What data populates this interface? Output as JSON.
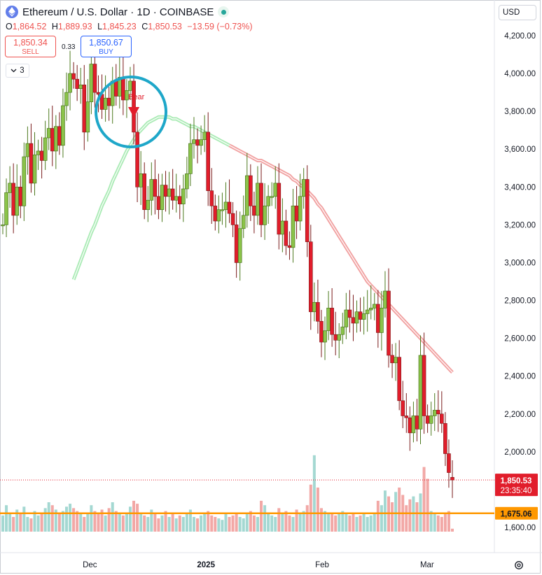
{
  "header": {
    "title": "Ethereum / U.S. Dollar · 1D · COINBASE",
    "ohlc": [
      {
        "k": "O",
        "v": "1,864.52"
      },
      {
        "k": "H",
        "v": "1,889.93"
      },
      {
        "k": "L",
        "v": "1,845.23"
      },
      {
        "k": "C",
        "v": "1,850.53"
      }
    ],
    "change": "−13.59 (−0.73%)"
  },
  "trade": {
    "sell_price": "1,850.34",
    "sell_label": "SELL",
    "buy_price": "1,850.67",
    "buy_label": "BUY",
    "spread": "0.33"
  },
  "indicator_count": "3",
  "currency": "USD",
  "colors": {
    "up": "#8bc34a",
    "up_volume": "#a4d8d2",
    "down": "#e11d2b",
    "down_volume": "#f2a8a6",
    "ma_down": "#ef8f8f",
    "ma_up": "#9be8a8",
    "marker_ring": "#1ea7c9",
    "price_label": "#e11d2b",
    "level_line": "#ff9800",
    "level_label": "#ff9800"
  },
  "icons": {
    "symbol": "ethereum-icon",
    "market_status": "market-open-dot-icon",
    "settings": "settings-gear-icon",
    "toggle": "chevron-down-icon"
  },
  "chart_data": {
    "type": "candlestick",
    "title": "Ethereum / U.S. Dollar · 1D · COINBASE",
    "xlabel": "",
    "ylabel": "",
    "ylim": [
      1580,
      4300
    ],
    "y_ticks": [
      "1,600.00",
      "2,000.00",
      "2,200.00",
      "2,400.00",
      "2,600.00",
      "2,800.00",
      "3,000.00",
      "3,200.00",
      "3,400.00",
      "3,600.00",
      "3,800.00",
      "4,000.00",
      "4,200.00"
    ],
    "y_tick_values": [
      1600,
      2000,
      2200,
      2400,
      2600,
      2800,
      3000,
      3200,
      3400,
      3600,
      3800,
      4000,
      4200
    ],
    "x_ticks": [
      {
        "label": "Dec",
        "date": "2024-12-01"
      },
      {
        "label": "2025",
        "date": "2025-01-01"
      },
      {
        "label": "Feb",
        "date": "2025-02-01"
      },
      {
        "label": "Mar",
        "date": "2025-03-01"
      }
    ],
    "first_date": "2024-11-10",
    "last_date": "2025-03-10",
    "closes": [
      3200,
      3370,
      3420,
      3250,
      3400,
      3300,
      3560,
      3630,
      3420,
      3570,
      3590,
      3540,
      3660,
      3710,
      3590,
      3720,
      3620,
      3830,
      3900,
      4000,
      3970,
      3920,
      3940,
      3690,
      3850,
      4050,
      3900,
      3890,
      3810,
      3870,
      3830,
      3960,
      3880,
      3980,
      3860,
      3910,
      3960,
      3690,
      3400,
      3470,
      3280,
      3330,
      3440,
      3350,
      3280,
      3410,
      3350,
      3390,
      3330,
      3350,
      3310,
      3390,
      3470,
      3630,
      3650,
      3620,
      3650,
      3690,
      3380,
      3300,
      3220,
      3280,
      3280,
      3320,
      3260,
      3200,
      3000,
      3180,
      3250,
      3460,
      3300,
      3250,
      3420,
      3200,
      3300,
      3350,
      3350,
      3420,
      3150,
      3220,
      3090,
      3080,
      3300,
      3220,
      3350,
      3440,
      3110,
      2740,
      2790,
      2690,
      2580,
      2640,
      2760,
      2620,
      2590,
      2620,
      2660,
      2750,
      2710,
      2680,
      2740,
      2700,
      2730,
      2750,
      2760,
      2780,
      2630,
      2760,
      2850,
      2510,
      2470,
      2500,
      2270,
      2190,
      2180,
      2100,
      2190,
      2120,
      2510,
      2190,
      2150,
      2190,
      2220,
      2200,
      2150,
      1990,
      1890,
      1851
    ],
    "opens": [
      3200,
      3200,
      3370,
      3420,
      3250,
      3400,
      3300,
      3560,
      3630,
      3420,
      3570,
      3590,
      3540,
      3660,
      3710,
      3590,
      3720,
      3620,
      3830,
      3900,
      4000,
      3970,
      3920,
      3940,
      3690,
      3850,
      4050,
      3900,
      3890,
      3810,
      3870,
      3830,
      3960,
      3880,
      3980,
      3860,
      3910,
      3960,
      3690,
      3400,
      3470,
      3280,
      3330,
      3440,
      3350,
      3280,
      3410,
      3350,
      3390,
      3330,
      3350,
      3310,
      3390,
      3470,
      3630,
      3650,
      3620,
      3650,
      3690,
      3380,
      3300,
      3220,
      3280,
      3280,
      3320,
      3260,
      3200,
      3000,
      3180,
      3250,
      3460,
      3300,
      3250,
      3420,
      3200,
      3300,
      3350,
      3350,
      3420,
      3150,
      3220,
      3090,
      3080,
      3300,
      3220,
      3350,
      3440,
      3110,
      2740,
      2790,
      2690,
      2580,
      2640,
      2760,
      2620,
      2590,
      2620,
      2660,
      2750,
      2710,
      2680,
      2740,
      2700,
      2730,
      2750,
      2760,
      2780,
      2630,
      2760,
      2850,
      2510,
      2470,
      2500,
      2270,
      2190,
      2180,
      2100,
      2190,
      2120,
      2510,
      2190,
      2150,
      2190,
      2220,
      2200,
      2150,
      1990,
      1865
    ],
    "volume": [
      0.55,
      0.9,
      0.65,
      0.5,
      0.75,
      0.6,
      0.85,
      0.5,
      0.45,
      0.7,
      0.55,
      0.6,
      0.8,
      1.0,
      0.9,
      0.75,
      0.6,
      0.7,
      0.85,
      0.95,
      0.8,
      0.7,
      0.6,
      0.5,
      0.65,
      0.9,
      0.7,
      0.6,
      0.75,
      0.55,
      0.8,
      1.0,
      0.7,
      0.6,
      0.55,
      0.65,
      0.85,
      1.05,
      0.95,
      0.6,
      0.55,
      0.5,
      0.75,
      0.6,
      0.45,
      0.55,
      0.7,
      0.5,
      0.6,
      0.45,
      0.55,
      0.5,
      0.6,
      0.75,
      0.5,
      0.45,
      0.55,
      0.6,
      0.7,
      0.55,
      0.5,
      0.45,
      0.4,
      0.6,
      0.5,
      0.55,
      0.65,
      0.5,
      0.45,
      0.6,
      0.7,
      0.55,
      0.5,
      1.05,
      0.9,
      0.6,
      0.55,
      0.5,
      0.8,
      0.65,
      0.7,
      0.55,
      0.5,
      0.75,
      0.6,
      0.7,
      0.9,
      1.6,
      2.6,
      1.5,
      0.8,
      0.7,
      0.65,
      0.6,
      0.55,
      0.6,
      0.7,
      0.65,
      0.55,
      0.6,
      0.5,
      0.55,
      0.6,
      0.5,
      0.55,
      0.6,
      1.05,
      0.9,
      1.4,
      1.2,
      1.0,
      1.35,
      1.5,
      1.25,
      0.9,
      1.1,
      1.2,
      1.0,
      1.3,
      2.2,
      1.8,
      0.7,
      0.6,
      0.55,
      0.5,
      0.6,
      0.7,
      0.1
    ],
    "moving_average": {
      "color_change_index": 44,
      "values": [
        2910,
        2960,
        3010,
        3060,
        3110,
        3160,
        3200,
        3250,
        3300,
        3340,
        3380,
        3430,
        3470,
        3510,
        3550,
        3590,
        3620,
        3650,
        3680,
        3700,
        3720,
        3740,
        3750,
        3760,
        3770,
        3770,
        3770,
        3770,
        3760,
        3760,
        3750,
        3740,
        3730,
        3720,
        3720,
        3710,
        3700,
        3690,
        3680,
        3670,
        3660,
        3650,
        3640,
        3630,
        3620,
        3610,
        3600,
        3590,
        3580,
        3570,
        3560,
        3550,
        3540,
        3540,
        3530,
        3520,
        3510,
        3500,
        3490,
        3480,
        3470,
        3460,
        3440,
        3430,
        3410,
        3400,
        3380,
        3360,
        3340,
        3310,
        3290,
        3260,
        3230,
        3200,
        3170,
        3140,
        3110,
        3080,
        3050,
        3020,
        2990,
        2960,
        2930,
        2900,
        2880,
        2860,
        2840,
        2820,
        2800,
        2780,
        2760,
        2740,
        2720,
        2700,
        2680,
        2660,
        2640,
        2620,
        2600,
        2580,
        2560,
        2540,
        2520,
        2500,
        2480,
        2460,
        2440,
        2420
      ]
    },
    "moving_average_visible_from": 0,
    "annotation": {
      "label": "Bear",
      "type": "sell-signal",
      "index": 37
    },
    "current_price_label": "1,850.53",
    "countdown": "23:35:40",
    "level_label": "1,675.06",
    "level_value": 1675.06
  }
}
